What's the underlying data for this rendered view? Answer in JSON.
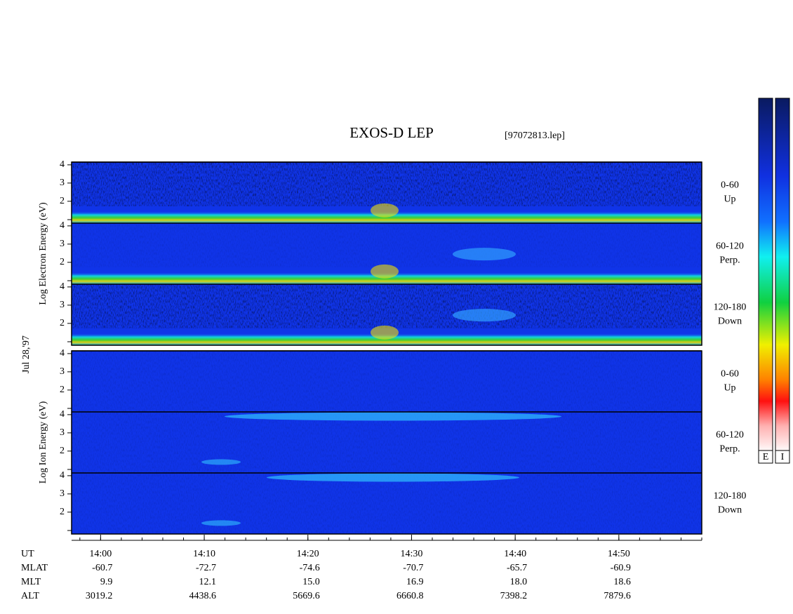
{
  "chart_data": {
    "type": "spectrogram",
    "title": "EXOS-D LEP",
    "file_label": "[97072813.lep]",
    "date_label": "Jul 28,'97",
    "panels": [
      {
        "ylabel": "Log Electron Energy (eV)",
        "species": "electron",
        "rows": [
          {
            "label": "0-60",
            "sublabel": "Up"
          },
          {
            "label": "60-120",
            "sublabel": "Perp."
          },
          {
            "label": "120-180",
            "sublabel": "Down"
          }
        ]
      },
      {
        "ylabel": "Log Ion Energy (eV)",
        "species": "ion",
        "rows": [
          {
            "label": "0-60",
            "sublabel": "Up"
          },
          {
            "label": "60-120",
            "sublabel": "Perp."
          },
          {
            "label": "120-180",
            "sublabel": "Down"
          }
        ]
      }
    ],
    "ylim": [
      0.8,
      4.15
    ],
    "yticks": [
      2,
      3,
      4
    ],
    "xlim": [
      837.2,
      898.0
    ],
    "xticks": [
      {
        "value": 840,
        "label": "14:00"
      },
      {
        "value": 850,
        "label": "14:10"
      },
      {
        "value": 860,
        "label": "14:20"
      },
      {
        "value": 870,
        "label": "14:30"
      },
      {
        "value": 880,
        "label": "14:40"
      },
      {
        "value": 890,
        "label": "14:50"
      }
    ],
    "x_axis_label": "UT",
    "ephemeris": [
      {
        "name": "MLAT",
        "values": [
          "-60.7",
          "-72.7",
          "-74.6",
          "-70.7",
          "-65.7",
          "-60.9"
        ]
      },
      {
        "name": "MLT",
        "values": [
          "9.9",
          "12.1",
          "15.0",
          "16.9",
          "18.0",
          "18.6"
        ]
      },
      {
        "name": "ALT",
        "values": [
          "3019.2",
          "4438.6",
          "5669.6",
          "6660.8",
          "7398.2",
          "7879.6"
        ]
      }
    ],
    "colorbar_labels": [
      "E",
      "I"
    ]
  }
}
